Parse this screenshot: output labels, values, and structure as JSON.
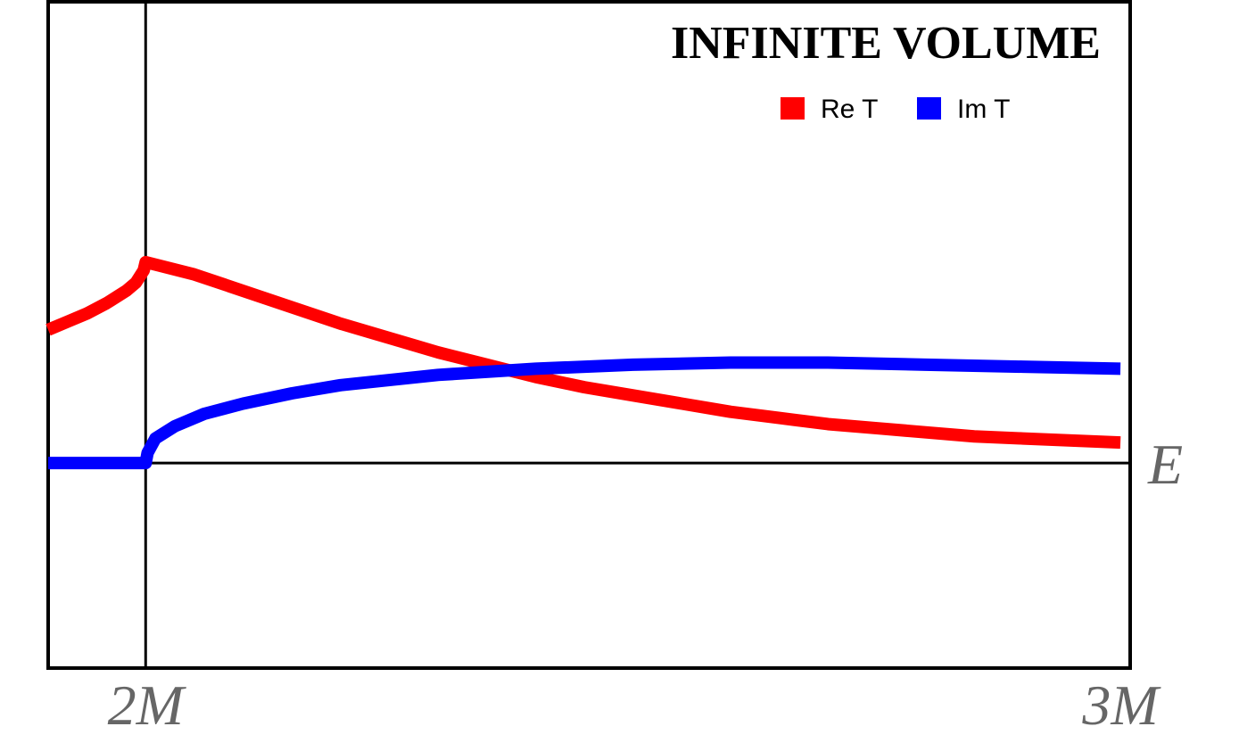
{
  "chart_data": {
    "type": "line",
    "title": "INFINITE VOLUME",
    "xlabel": "E",
    "ylabel": "",
    "x_ticks": [
      {
        "value": 2,
        "label": "2M"
      },
      {
        "value": 3,
        "label": "3M"
      }
    ],
    "xlim": [
      1.9,
      3.01
    ],
    "ylim": [
      -1.0,
      2.25
    ],
    "legend_position": "top-right",
    "grid": false,
    "series": [
      {
        "name": "Re T",
        "color": "#ff0000",
        "points": [
          [
            1.9,
            0.65
          ],
          [
            1.92,
            0.69
          ],
          [
            1.94,
            0.73
          ],
          [
            1.96,
            0.78
          ],
          [
            1.98,
            0.84
          ],
          [
            1.99,
            0.88
          ],
          [
            1.998,
            0.94
          ],
          [
            2.0,
            0.98
          ],
          [
            2.05,
            0.92
          ],
          [
            2.1,
            0.84
          ],
          [
            2.15,
            0.76
          ],
          [
            2.2,
            0.68
          ],
          [
            2.25,
            0.61
          ],
          [
            2.3,
            0.54
          ],
          [
            2.35,
            0.48
          ],
          [
            2.4,
            0.42
          ],
          [
            2.45,
            0.37
          ],
          [
            2.5,
            0.33
          ],
          [
            2.55,
            0.29
          ],
          [
            2.6,
            0.25
          ],
          [
            2.65,
            0.22
          ],
          [
            2.7,
            0.19
          ],
          [
            2.75,
            0.17
          ],
          [
            2.8,
            0.15
          ],
          [
            2.85,
            0.13
          ],
          [
            2.9,
            0.12
          ],
          [
            2.95,
            0.11
          ],
          [
            3.0,
            0.1
          ]
        ]
      },
      {
        "name": "Im T",
        "color": "#0000ff",
        "points": [
          [
            1.9,
            0.0
          ],
          [
            2.0,
            0.0
          ],
          [
            2.002,
            0.05
          ],
          [
            2.01,
            0.12
          ],
          [
            2.03,
            0.18
          ],
          [
            2.06,
            0.24
          ],
          [
            2.1,
            0.29
          ],
          [
            2.15,
            0.34
          ],
          [
            2.2,
            0.38
          ],
          [
            2.3,
            0.43
          ],
          [
            2.4,
            0.46
          ],
          [
            2.5,
            0.48
          ],
          [
            2.6,
            0.49
          ],
          [
            2.7,
            0.49
          ],
          [
            2.8,
            0.48
          ],
          [
            2.9,
            0.47
          ],
          [
            3.0,
            0.46
          ]
        ]
      }
    ]
  }
}
